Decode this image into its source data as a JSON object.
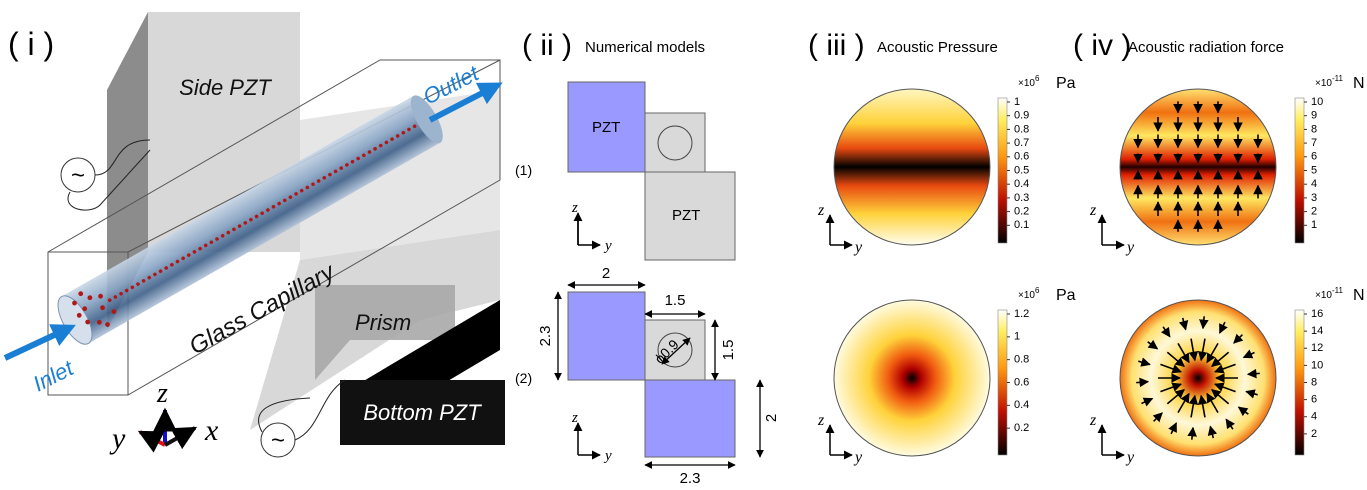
{
  "panel_i": {
    "label": "( i )",
    "side_pzt": "Side PZT",
    "outlet": "Outlet",
    "inlet": "Inlet",
    "capillary": "Glass Capillary",
    "prism": "Prism",
    "bottom_pzt": "Bottom PZT",
    "source_symbol": "~",
    "axes": {
      "z": "z",
      "y": "y",
      "x": "x"
    }
  },
  "panel_ii": {
    "label": "( ii )",
    "title": "Numerical models",
    "model_1": {
      "label": "(1)",
      "pzt_left": "PZT",
      "pzt_bottom": "PZT",
      "axes": {
        "z": "z",
        "y": "y"
      }
    },
    "model_2": {
      "label": "(2)",
      "width_top": "2",
      "height_left": "2.3",
      "channel_width": "1.5",
      "diameter": "ϕ0.9",
      "channel_height": "1.5",
      "height_right": "2",
      "width_bottom": "2.3",
      "axes": {
        "z": "z",
        "y": "y"
      }
    }
  },
  "panel_iii": {
    "label": "( iii )",
    "title": "Acoustic Pressure",
    "colorbars": [
      {
        "scale_base": "×10",
        "scale_exp": "6",
        "unit": "Pa",
        "ticks": [
          1,
          0.9,
          0.8,
          0.7,
          0.6,
          0.5,
          0.4,
          0.3,
          0.2,
          0.1
        ]
      },
      {
        "scale_base": "×10",
        "scale_exp": "6",
        "unit": "Pa",
        "ticks": [
          1.2,
          1,
          0.8,
          0.6,
          0.4,
          0.2
        ]
      }
    ],
    "axes": {
      "z": "z",
      "y": "y"
    }
  },
  "panel_iv": {
    "label": "( iv )",
    "title": "Acoustic radiation force",
    "colorbars": [
      {
        "scale_base": "×10",
        "scale_exp": "-11",
        "unit": "N",
        "ticks": [
          10,
          9,
          8,
          7,
          6,
          5,
          4,
          3,
          2,
          1
        ]
      },
      {
        "scale_base": "×10",
        "scale_exp": "-11",
        "unit": "N",
        "ticks": [
          16,
          14,
          12,
          10,
          8,
          6,
          4,
          2
        ]
      }
    ],
    "axes": {
      "z": "z",
      "y": "y"
    }
  }
}
